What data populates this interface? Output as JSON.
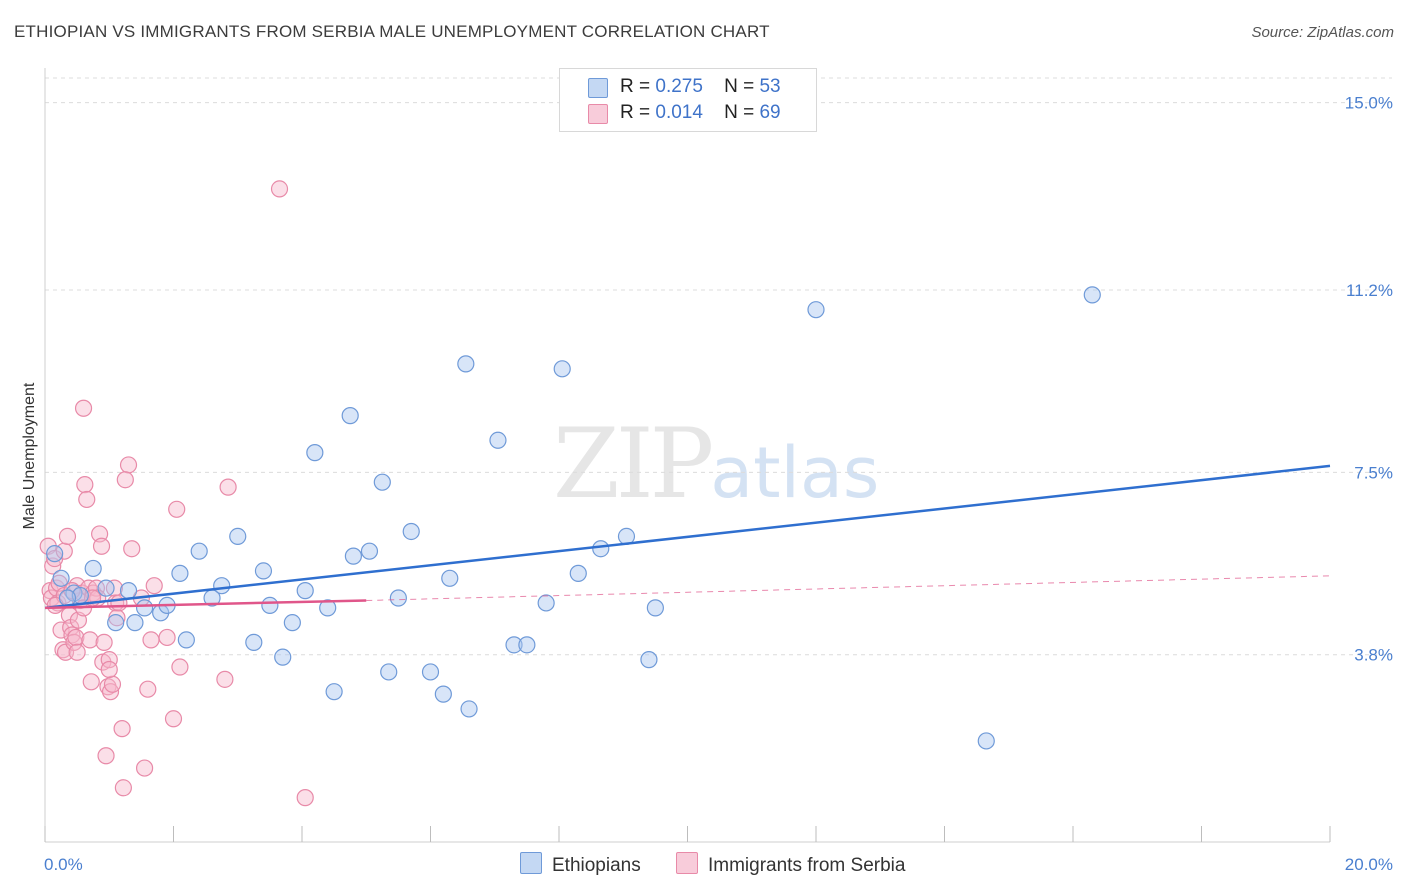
{
  "header": {
    "title": "ETHIOPIAN VS IMMIGRANTS FROM SERBIA MALE UNEMPLOYMENT CORRELATION CHART",
    "source": "Source: ZipAtlas.com"
  },
  "watermark": {
    "zip": "ZIP",
    "atlas": "atlas"
  },
  "legend": {
    "rows": [
      {
        "r_label": "R =",
        "r_value": "0.275",
        "n_label": "N =",
        "n_value": "53"
      },
      {
        "r_label": "R =",
        "r_value": "0.014",
        "n_label": "N =",
        "n_value": "69"
      }
    ]
  },
  "bottom_legend": {
    "series1": "Ethiopians",
    "series2": "Immigrants from Serbia"
  },
  "colors": {
    "blue_fill": "#a9c6ef",
    "blue_stroke": "#6f9ad8",
    "blue_line": "#2f6fcf",
    "pink_fill": "#f6b9cc",
    "pink_stroke": "#e88aa8",
    "pink_line": "#e0568a",
    "grid": "#dcdcdc",
    "tick_text": "#4a7fcf"
  },
  "chart_data": {
    "type": "scatter",
    "title": "ETHIOPIAN VS IMMIGRANTS FROM SERBIA MALE UNEMPLOYMENT CORRELATION CHART",
    "xlabel": "",
    "ylabel": "Male Unemployment",
    "xlim": [
      0,
      20
    ],
    "ylim": [
      0,
      15.5
    ],
    "x_tick_labels": [
      "0.0%",
      "20.0%"
    ],
    "y_ticks": [
      3.8,
      7.5,
      11.2,
      15.0
    ],
    "y_tick_labels": [
      "3.8%",
      "7.5%",
      "11.2%",
      "15.0%"
    ],
    "series": [
      {
        "name": "Ethiopians",
        "r": 0.275,
        "n": 53,
        "trend": {
          "x": [
            0,
            20
          ],
          "y": [
            4.75,
            7.63
          ]
        },
        "points": [
          [
            0.15,
            5.85
          ],
          [
            0.25,
            5.35
          ],
          [
            0.45,
            5.05
          ],
          [
            0.55,
            5.0
          ],
          [
            0.75,
            5.55
          ],
          [
            0.95,
            5.15
          ],
          [
            1.1,
            4.45
          ],
          [
            1.4,
            4.45
          ],
          [
            1.55,
            4.75
          ],
          [
            1.8,
            4.65
          ],
          [
            1.9,
            4.8
          ],
          [
            2.1,
            5.45
          ],
          [
            2.2,
            4.1
          ],
          [
            2.4,
            5.9
          ],
          [
            2.6,
            4.95
          ],
          [
            2.75,
            5.2
          ],
          [
            3.0,
            6.2
          ],
          [
            3.25,
            4.05
          ],
          [
            3.4,
            5.5
          ],
          [
            3.5,
            4.8
          ],
          [
            3.7,
            3.75
          ],
          [
            3.85,
            4.45
          ],
          [
            4.05,
            5.1
          ],
          [
            4.2,
            7.9
          ],
          [
            4.4,
            4.75
          ],
          [
            4.5,
            3.05
          ],
          [
            4.75,
            8.65
          ],
          [
            4.8,
            5.8
          ],
          [
            5.05,
            5.9
          ],
          [
            5.25,
            7.3
          ],
          [
            5.35,
            3.45
          ],
          [
            5.5,
            4.95
          ],
          [
            5.7,
            6.3
          ],
          [
            6.0,
            3.45
          ],
          [
            6.2,
            3.0
          ],
          [
            6.3,
            5.35
          ],
          [
            6.55,
            9.7
          ],
          [
            6.6,
            2.7
          ],
          [
            7.05,
            8.15
          ],
          [
            7.3,
            4.0
          ],
          [
            7.5,
            4.0
          ],
          [
            7.8,
            4.85
          ],
          [
            8.05,
            9.6
          ],
          [
            8.3,
            5.45
          ],
          [
            8.65,
            5.95
          ],
          [
            9.05,
            6.2
          ],
          [
            9.4,
            3.7
          ],
          [
            9.5,
            4.75
          ],
          [
            12.0,
            10.8
          ],
          [
            14.65,
            2.05
          ],
          [
            16.3,
            11.1
          ],
          [
            0.35,
            4.95
          ],
          [
            1.3,
            5.1
          ]
        ]
      },
      {
        "name": "Immigrants from Serbia",
        "r": 0.014,
        "n": 69,
        "trend": {
          "x": [
            0,
            5
          ],
          "y": [
            4.75,
            4.9
          ]
        },
        "trend_extension": {
          "x": [
            5,
            20
          ],
          "y": [
            4.9,
            5.4
          ]
        },
        "points": [
          [
            0.05,
            6.0
          ],
          [
            0.08,
            5.1
          ],
          [
            0.1,
            4.95
          ],
          [
            0.12,
            5.6
          ],
          [
            0.15,
            5.75
          ],
          [
            0.18,
            5.15
          ],
          [
            0.2,
            4.85
          ],
          [
            0.22,
            5.25
          ],
          [
            0.25,
            4.3
          ],
          [
            0.28,
            3.9
          ],
          [
            0.3,
            5.9
          ],
          [
            0.32,
            3.85
          ],
          [
            0.35,
            6.2
          ],
          [
            0.38,
            4.6
          ],
          [
            0.4,
            4.35
          ],
          [
            0.42,
            4.2
          ],
          [
            0.45,
            4.05
          ],
          [
            0.48,
            4.15
          ],
          [
            0.5,
            5.2
          ],
          [
            0.52,
            4.5
          ],
          [
            0.55,
            4.9
          ],
          [
            0.58,
            5.05
          ],
          [
            0.6,
            8.8
          ],
          [
            0.62,
            7.25
          ],
          [
            0.65,
            6.95
          ],
          [
            0.68,
            5.15
          ],
          [
            0.7,
            4.1
          ],
          [
            0.72,
            3.25
          ],
          [
            0.75,
            5.05
          ],
          [
            0.8,
            5.15
          ],
          [
            0.82,
            4.95
          ],
          [
            0.85,
            6.25
          ],
          [
            0.88,
            6.0
          ],
          [
            0.9,
            3.65
          ],
          [
            0.92,
            4.05
          ],
          [
            0.95,
            1.75
          ],
          [
            0.98,
            3.15
          ],
          [
            1.0,
            3.7
          ],
          [
            1.02,
            3.05
          ],
          [
            1.05,
            3.2
          ],
          [
            1.08,
            5.15
          ],
          [
            1.1,
            4.85
          ],
          [
            1.12,
            4.55
          ],
          [
            1.15,
            4.85
          ],
          [
            1.2,
            2.3
          ],
          [
            1.22,
            1.1
          ],
          [
            1.3,
            7.65
          ],
          [
            1.35,
            5.95
          ],
          [
            1.5,
            4.95
          ],
          [
            1.55,
            1.5
          ],
          [
            1.6,
            3.1
          ],
          [
            1.65,
            4.1
          ],
          [
            1.9,
            4.15
          ],
          [
            2.0,
            2.5
          ],
          [
            2.05,
            6.75
          ],
          [
            2.1,
            3.55
          ],
          [
            2.8,
            3.3
          ],
          [
            2.85,
            7.2
          ],
          [
            3.65,
            13.25
          ],
          [
            4.05,
            0.9
          ],
          [
            1.7,
            5.2
          ],
          [
            0.3,
            5.0
          ],
          [
            0.6,
            4.75
          ],
          [
            0.42,
            5.1
          ],
          [
            1.25,
            7.35
          ],
          [
            1.0,
            3.5
          ],
          [
            0.16,
            4.8
          ],
          [
            0.5,
            3.85
          ],
          [
            0.74,
            4.95
          ]
        ]
      }
    ]
  }
}
